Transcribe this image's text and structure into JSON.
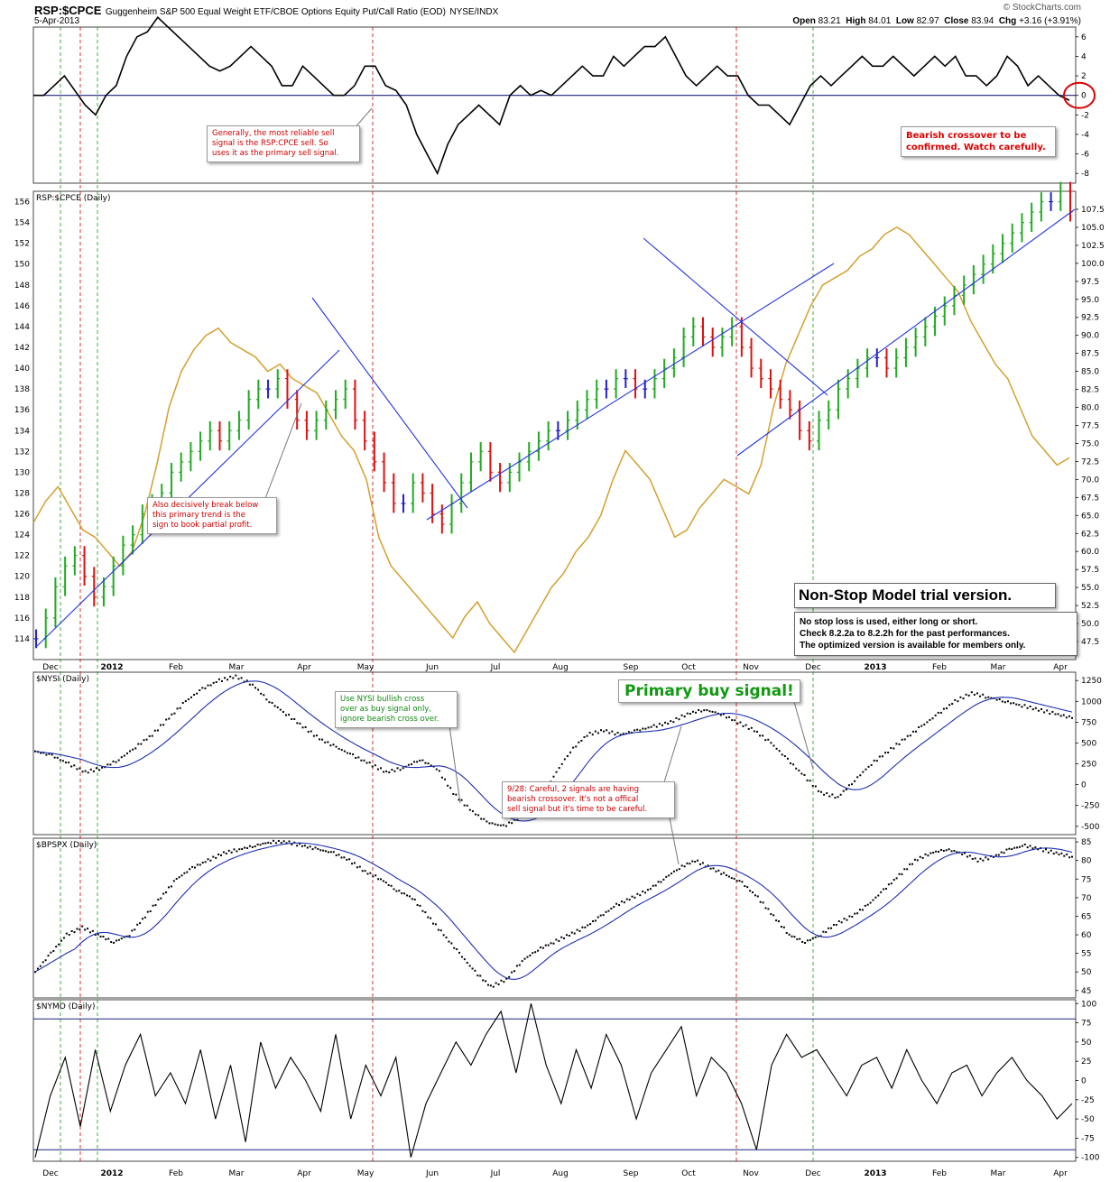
{
  "header": {
    "symbol": "RSP:$CPCE",
    "description": "Guggenheim S&P 500 Equal Weight ETF/CBOE Options Equity Put/Call Ratio (EOD)",
    "exchange": "NYSE/INDX",
    "date": "5-Apr-2013",
    "brand": "© StockCharts.com",
    "ohlc": {
      "open_label": "Open",
      "open": "83.21",
      "high_label": "High",
      "high": "84.01",
      "low_label": "Low",
      "low": "82.97",
      "close_label": "Close",
      "close": "83.94",
      "chg_label": "Chg",
      "chg": "+3.16 (+3.91%)"
    }
  },
  "panel_labels": {
    "main": "RSP:$CPCE (Daily)",
    "nysi": "$NYSI (Daily)",
    "bpspx": "$BPSPX (Daily)",
    "nymo": "$NYMO (Daily)"
  },
  "x_axis": {
    "months": [
      "Dec",
      "2012",
      "Feb",
      "Mar",
      "Apr",
      "May",
      "Jun",
      "Jul",
      "Aug",
      "Sep",
      "Oct",
      "Nov",
      "Dec",
      "2013",
      "Feb",
      "Mar",
      "Apr"
    ]
  },
  "annotations": {
    "rsp_sell": "Generally, the most reliable sell\nsignal is the RSP:CPCE sell. So\nuses it as the primary sell signal.",
    "bearish_crossover": "Bearish crossover to be\nconfirmed. Watch carefully.",
    "break_trend": "Also decisively break below\nthis primary trend is the\nsign to book partial profit.",
    "nysi_rule": "Use NYSI bullish cross\nover as buy signal only,\nignore bearish cross over.",
    "primary_buy": "Primary buy signal!",
    "careful_928": "9/28: Careful, 2 signals are having\nbearish crossover. It's not a offical\nsell signal but it's time to be careful.",
    "model_title": "Non-Stop Model trial version.",
    "model_body": "No stop loss is used, either long or short.\nCheck 8.2.2a to 8.2.2h for the past performances.\nThe optimized version is available for members only."
  },
  "colors": {
    "bar_up": "#22aa22",
    "bar_down": "#dd1111",
    "bar_neutral": "#2222cc",
    "cpce_line": "#d4a030",
    "trendline": "#2233dd",
    "ma_line": "#1f2fb0",
    "sell_marker": "#cc0000",
    "buy_marker": "#119911",
    "circle": "#dd0000"
  },
  "chart_data": [
    {
      "panel": "top-oscillator",
      "type": "line",
      "ylim": [
        -9,
        7
      ],
      "yticks": [
        6,
        4,
        2,
        0,
        -2,
        -4,
        -6,
        -8
      ],
      "zero_line": 0,
      "values": [
        0,
        0,
        1,
        2,
        0.5,
        -1,
        -2,
        0,
        1,
        4,
        6,
        6.5,
        8,
        7,
        6,
        5,
        4,
        3,
        2.5,
        3,
        4,
        5,
        4,
        3,
        1,
        1,
        3,
        2,
        1,
        0,
        0,
        1,
        3,
        3,
        1,
        0.5,
        -1,
        -4,
        -6,
        -8,
        -5,
        -3,
        -2,
        -1,
        -2,
        -3,
        0,
        1,
        0,
        0.5,
        0,
        1,
        2,
        3,
        2,
        2,
        4,
        3,
        4,
        5,
        5,
        6,
        4,
        2,
        1,
        2,
        3,
        2,
        2,
        0,
        -1,
        -1,
        -2,
        -3,
        -1,
        1,
        2,
        1,
        2,
        3,
        4,
        3,
        3,
        4,
        3,
        2,
        3,
        4,
        3,
        4,
        2,
        2,
        1,
        2,
        4,
        3,
        1,
        2,
        1,
        0,
        -0.5
      ]
    },
    {
      "panel": "main-price",
      "type": "ohlc-bar-with-line",
      "left_axis": {
        "label": "RSP:$CPCE",
        "ylim": [
          112,
          157
        ],
        "ticks": [
          156,
          154,
          152,
          150,
          148,
          146,
          144,
          142,
          140,
          138,
          136,
          134,
          132,
          130,
          128,
          126,
          124,
          122,
          120,
          118,
          116,
          114
        ]
      },
      "right_axis": {
        "label": "$CPCE",
        "ylim": [
          45,
          110
        ],
        "ticks": [
          "107.5",
          "105.0",
          "102.5",
          "100.0",
          "97.5",
          "95.0",
          "92.5",
          "90.0",
          "87.5",
          "85.0",
          "82.5",
          "80.0",
          "77.5",
          "75.0",
          "72.5",
          "70.0",
          "67.5",
          "65.0",
          "62.5",
          "60.0",
          "57.5",
          "55.0",
          "52.5",
          "50.0",
          "47.5"
        ]
      },
      "ratio_series": [
        114,
        116,
        119,
        121,
        122,
        120,
        118,
        119,
        121,
        123,
        124,
        126,
        127,
        128,
        130,
        131,
        132,
        133,
        134,
        133,
        134,
        135,
        137,
        138,
        138,
        139,
        137,
        135,
        134,
        135,
        136,
        137,
        138,
        135,
        133,
        131,
        129,
        127,
        127,
        129,
        128,
        126,
        125,
        127,
        129,
        131,
        132,
        130,
        129,
        130,
        131,
        132,
        133,
        134,
        134,
        135,
        136,
        137,
        138,
        138,
        139,
        139,
        138,
        138,
        139,
        140,
        141,
        143,
        144,
        143,
        142,
        143,
        144,
        142,
        140,
        139,
        138,
        137,
        136,
        134,
        133,
        135,
        136,
        138,
        139,
        140,
        141,
        141,
        140,
        141,
        142,
        143,
        144,
        145,
        146,
        147,
        148,
        149,
        150,
        151,
        152,
        153,
        154,
        155,
        156,
        156,
        157,
        155
      ],
      "cpce_series": [
        64,
        67,
        69,
        66,
        63,
        62,
        60,
        58,
        60,
        65,
        72,
        80,
        85,
        88,
        90,
        91,
        89,
        88,
        87,
        85,
        86,
        84,
        83,
        82,
        79,
        76,
        74,
        70,
        62,
        58,
        56,
        54,
        52,
        50,
        48,
        51,
        53,
        50,
        48,
        46,
        49,
        52,
        55,
        57,
        60,
        62,
        65,
        70,
        74,
        72,
        70,
        66,
        62,
        63,
        66,
        68,
        70,
        69,
        68,
        72,
        80,
        86,
        90,
        94,
        97,
        98,
        99,
        101,
        102,
        104,
        105,
        104,
        102,
        100,
        98,
        96,
        92,
        89,
        86,
        84,
        80,
        76,
        74,
        72,
        73
      ]
    },
    {
      "panel": "nysi",
      "type": "scatter-with-ma",
      "ylim": [
        -600,
        1350
      ],
      "yticks": [
        1250,
        1000,
        750,
        500,
        250,
        0,
        -250,
        -500
      ],
      "values": [
        400,
        350,
        250,
        150,
        200,
        300,
        450,
        600,
        800,
        1000,
        1150,
        1250,
        1300,
        1200,
        1000,
        850,
        700,
        550,
        450,
        350,
        250,
        150,
        200,
        300,
        200,
        -100,
        -300,
        -450,
        -500,
        -400,
        -200,
        100,
        400,
        600,
        650,
        600,
        650,
        700,
        750,
        850,
        900,
        850,
        750,
        650,
        500,
        300,
        100,
        -100,
        -150,
        50,
        250,
        400,
        550,
        700,
        850,
        1000,
        1100,
        1050,
        1000,
        950,
        900,
        850,
        800
      ]
    },
    {
      "panel": "bpspx",
      "type": "scatter-with-ma",
      "ylim": [
        43,
        86
      ],
      "yticks": [
        85,
        80,
        75,
        70,
        65,
        60,
        55,
        50,
        45
      ],
      "values": [
        50,
        55,
        60,
        62,
        60,
        58,
        60,
        65,
        70,
        75,
        78,
        80,
        82,
        83,
        84,
        85,
        85,
        84,
        83,
        82,
        80,
        77,
        75,
        72,
        70,
        65,
        60,
        55,
        50,
        46,
        48,
        53,
        56,
        58,
        60,
        62,
        65,
        68,
        70,
        72,
        75,
        78,
        80,
        78,
        76,
        74,
        70,
        65,
        60,
        58,
        60,
        63,
        65,
        68,
        72,
        76,
        80,
        82,
        83,
        82,
        80,
        81,
        83,
        84,
        83,
        82,
        81
      ]
    },
    {
      "panel": "nymo",
      "type": "line",
      "ylim": [
        -105,
        105
      ],
      "yticks": [
        100,
        75,
        50,
        25,
        0,
        -25,
        -50,
        -75,
        -100
      ],
      "bands": [
        80,
        -90
      ],
      "values": [
        -100,
        -20,
        30,
        -60,
        40,
        -40,
        20,
        60,
        -20,
        10,
        -30,
        40,
        -50,
        20,
        -80,
        50,
        -10,
        30,
        0,
        -40,
        60,
        -50,
        20,
        -20,
        30,
        -100,
        -30,
        10,
        50,
        20,
        60,
        90,
        10,
        100,
        20,
        -30,
        40,
        -10,
        60,
        20,
        -50,
        10,
        40,
        70,
        -20,
        30,
        10,
        -30,
        -90,
        20,
        60,
        30,
        40,
        10,
        -20,
        20,
        30,
        -10,
        40,
        0,
        -30,
        10,
        20,
        -20,
        10,
        30,
        0,
        -20,
        -50,
        -30
      ]
    }
  ]
}
